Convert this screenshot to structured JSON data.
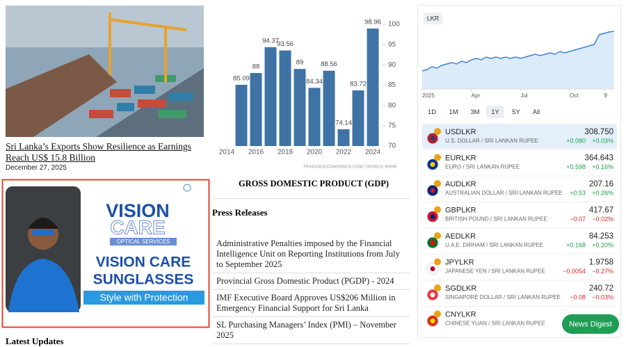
{
  "article": {
    "headline": "Sri Lanka’s Exports Show Resilience as Earnings Reach US$ 15.8 Billion",
    "date": "December 27, 2025"
  },
  "ad": {
    "brand_1": "VISION",
    "brand_2": "CARE",
    "tagline": "OPTICAL SERVICES",
    "headline_1": "VISION CARE",
    "headline_2": "SUNGLASSES",
    "slogan": "Style with Protection"
  },
  "latest_updates": "Latest Updates",
  "chart_data": [
    {
      "type": "bar",
      "title": "GROSS DOMESTIC PRODUCT (GDP)",
      "source": "TRADINGECONOMICS.COM | WORLD BANK",
      "x": [
        2015,
        2016,
        2017,
        2018,
        2019,
        2020,
        2021,
        2022,
        2023,
        2024
      ],
      "values": [
        85.09,
        88,
        94.37,
        93.56,
        89,
        84.34,
        88.56,
        74.14,
        83.72,
        98.96
      ],
      "color": "#3f73a6",
      "xlim": [
        2014,
        2024.5
      ],
      "ylim": [
        70,
        100
      ],
      "xticks": [
        2014,
        2016,
        2018,
        2020,
        2022,
        2024
      ],
      "yticks": [
        70,
        75,
        80,
        85,
        90,
        95,
        100
      ]
    },
    {
      "type": "line",
      "currency": "LKR",
      "color": "#3b82d6",
      "x": [
        0,
        0.3,
        0.6,
        0.9,
        1.2,
        1.5,
        1.8,
        2.1,
        2.4,
        2.7,
        3.0,
        3.3,
        3.6,
        3.9,
        4.2,
        4.5,
        4.8,
        5.1,
        5.4,
        5.7,
        6.0,
        6.3,
        6.6,
        6.9,
        7.2,
        7.5,
        7.8,
        8.1,
        8.4,
        8.7,
        9.0,
        9.3,
        9.6,
        9.9,
        10.2,
        10.5,
        10.8,
        11.1,
        11.4,
        11.7
      ],
      "values": [
        294.5,
        295,
        296,
        295.5,
        296.5,
        297,
        297.5,
        297,
        298,
        297.5,
        298.5,
        299,
        298.5,
        299.5,
        299,
        299.5,
        299,
        299.5,
        299,
        299.5,
        299,
        299.5,
        300,
        300.5,
        300,
        300.5,
        301,
        300.5,
        301.5,
        301,
        301.5,
        302,
        302.5,
        303,
        303.5,
        304,
        307.5,
        308,
        308.5,
        308.75
      ],
      "xlim": [
        0,
        11.8
      ],
      "ylim": [
        288,
        310
      ],
      "xticks": [
        {
          "value": 0,
          "label": "2025"
        },
        {
          "value": 3,
          "label": "Apr"
        },
        {
          "value": 6,
          "label": "Jul"
        },
        {
          "value": 9,
          "label": "Oct"
        },
        {
          "value": 11.1,
          "label": "9"
        }
      ]
    }
  ],
  "press_releases": {
    "heading": "Press Releases",
    "items": [
      "Administrative Penalties imposed by the Financial Intelligence Unit on Reporting Institutions from July to September 2025",
      "Provincial Gross Domestic Product (PGDP) - 2024",
      "IMF Executive Board Approves US$206 Million in Emergency Financial Support for Sri Lanka",
      "SL Purchasing Managers’ Index (PMI) – November 2025"
    ]
  },
  "fx": {
    "ranges": [
      "1D",
      "1M",
      "3M",
      "1Y",
      "5Y",
      "All"
    ],
    "selected": 3,
    "rows": [
      {
        "symbol": "USDLKR",
        "name": "U.S. DOLLAR / SRI LANKAN RUPEE",
        "price": "308.750",
        "change": "+0.080",
        "pct": "+0.03%"
      },
      {
        "symbol": "EURLKR",
        "name": "EURO / SRI LANKAN RUPEE",
        "price": "364.643",
        "change": "+0.598",
        "pct": "+0.16%"
      },
      {
        "symbol": "AUDLKR",
        "name": "AUSTRALIAN DOLLAR / SRI LANKAN RUPEE",
        "price": "207.16",
        "change": "+0.53",
        "pct": "+0.26%"
      },
      {
        "symbol": "GBPLKR",
        "name": "BRITISH POUND / SRI LANKAN RUPEE",
        "price": "417.67",
        "change": "−0.07",
        "pct": "−0.02%"
      },
      {
        "symbol": "AEDLKR",
        "name": "U.A.E. DIRHAM / SRI LANKAN RUPEE",
        "price": "84.253",
        "change": "+0.168",
        "pct": "+0.20%"
      },
      {
        "symbol": "JPYLKR",
        "name": "JAPANESE YEN / SRI LANKAN RUPEE",
        "price": "1.9758",
        "change": "−0.0054",
        "pct": "−0.27%"
      },
      {
        "symbol": "SGDLKR",
        "name": "SINGAPORE DOLLAR / SRI LANKAN RUPEE",
        "price": "240.72",
        "change": "−0.08",
        "pct": "−0.03%"
      },
      {
        "symbol": "CNYLKR",
        "name": "CHINESE YUAN / SRI LANKAN RUPEE"
      }
    ]
  },
  "news_digest": "News Digest"
}
